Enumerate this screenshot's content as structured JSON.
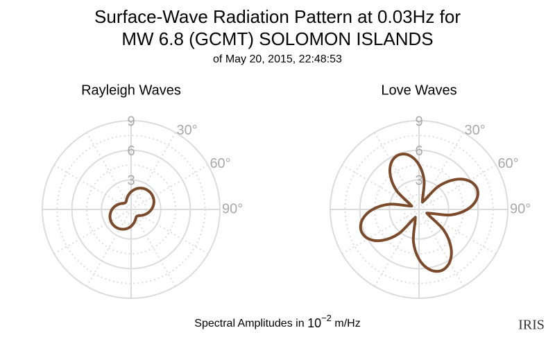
{
  "header": {
    "title_lines": [
      "Surface-Wave Radiation Pattern at 0.03Hz for",
      "MW 6.8 (GCMT) SOLOMON ISLANDS"
    ],
    "subtitle": "of May 20, 2015, 22:48:53"
  },
  "footer": {
    "text": "Spectral Amplitudes in",
    "base": "10",
    "exponent": "−2",
    "unit": "m/Hz"
  },
  "logo": "IRIS",
  "chart_data": [
    {
      "type": "polar",
      "title": "Rayleigh Waves",
      "color": "#7a4a2b",
      "rlim": [
        0,
        9
      ],
      "rticks": [
        3,
        6,
        9
      ],
      "thetaticks": [
        {
          "value": 30,
          "label": "30°"
        },
        {
          "value": 60,
          "label": "60°"
        },
        {
          "value": 90,
          "label": "90°"
        }
      ],
      "theta": [
        0,
        10,
        20,
        30,
        40,
        50,
        60,
        70,
        80,
        90,
        100,
        110,
        120,
        130,
        140,
        150,
        160,
        170,
        180,
        190,
        200,
        210,
        220,
        230,
        240,
        250,
        260,
        270,
        280,
        290,
        300,
        310,
        320,
        330,
        340,
        350
      ],
      "r": [
        1.79,
        2.06,
        2.29,
        2.46,
        2.56,
        2.6,
        2.56,
        2.46,
        2.29,
        2.06,
        1.79,
        1.5,
        1.22,
        0.99,
        0.9,
        0.98,
        1.19,
        1.44,
        1.7,
        1.94,
        2.13,
        2.28,
        2.37,
        2.4,
        2.37,
        2.28,
        2.13,
        1.94,
        1.7,
        1.44,
        1.19,
        0.98,
        0.9,
        0.99,
        1.22,
        1.5
      ]
    },
    {
      "type": "polar",
      "title": "Love Waves",
      "color": "#7a4a2b",
      "rlim": [
        0,
        9
      ],
      "rticks": [
        3,
        6,
        9
      ],
      "thetaticks": [
        {
          "value": 30,
          "label": "30°"
        },
        {
          "value": 60,
          "label": "60°"
        },
        {
          "value": 90,
          "label": "90°"
        }
      ],
      "theta": [
        0,
        10,
        20,
        30,
        40,
        50,
        60,
        70,
        80,
        90,
        100,
        110,
        120,
        130,
        140,
        150,
        160,
        170,
        180,
        190,
        200,
        210,
        220,
        230,
        240,
        250,
        260,
        270,
        280,
        290,
        300,
        310,
        320,
        330,
        340,
        350
      ],
      "r": [
        4.53,
        2.97,
        1.04,
        1.05,
        3.04,
        4.7,
        5.82,
        6.25,
        5.93,
        4.88,
        3.22,
        1.12,
        1.13,
        3.28,
        5.04,
        6.19,
        6.6,
        6.19,
        5.04,
        3.28,
        1.13,
        1.12,
        3.22,
        4.88,
        5.93,
        6.25,
        5.82,
        4.7,
        3.04,
        1.05,
        1.04,
        2.97,
        4.53,
        5.56,
        5.9,
        5.56
      ]
    }
  ]
}
